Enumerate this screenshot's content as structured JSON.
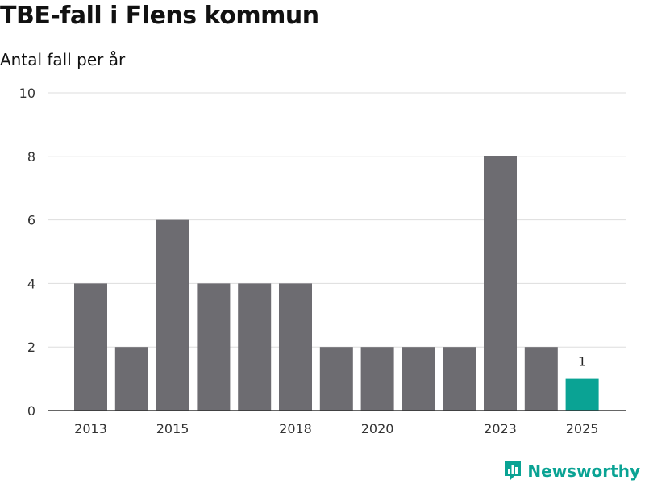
{
  "colors": {
    "bar": "#6d6c71",
    "highlight": "#0aa394",
    "grid": "#dddddd",
    "axis": "#333333"
  },
  "brand": {
    "name": "Newsworthy",
    "icon": "bar-chart-logo-icon"
  },
  "chart_data": {
    "type": "bar",
    "title": "TBE-fall i Flens kommun",
    "subtitle": "Antal fall per år",
    "xlabel": "",
    "ylabel": "",
    "ylim": [
      0,
      10
    ],
    "yticks": [
      0,
      2,
      4,
      6,
      8,
      10
    ],
    "categories": [
      "2013",
      "2014",
      "2015",
      "2016",
      "2017",
      "2018",
      "2019",
      "2020",
      "2021",
      "2022",
      "2023",
      "2024",
      "2025"
    ],
    "values": [
      4,
      2,
      6,
      4,
      4,
      4,
      2,
      2,
      2,
      2,
      8,
      2,
      1
    ],
    "xtick_labels": [
      "2013",
      "2015",
      "2018",
      "2020",
      "2023",
      "2025"
    ],
    "highlight_category": "2025",
    "data_labels": [
      {
        "category": "2025",
        "text": "1"
      }
    ],
    "grid": true,
    "legend": "none"
  }
}
